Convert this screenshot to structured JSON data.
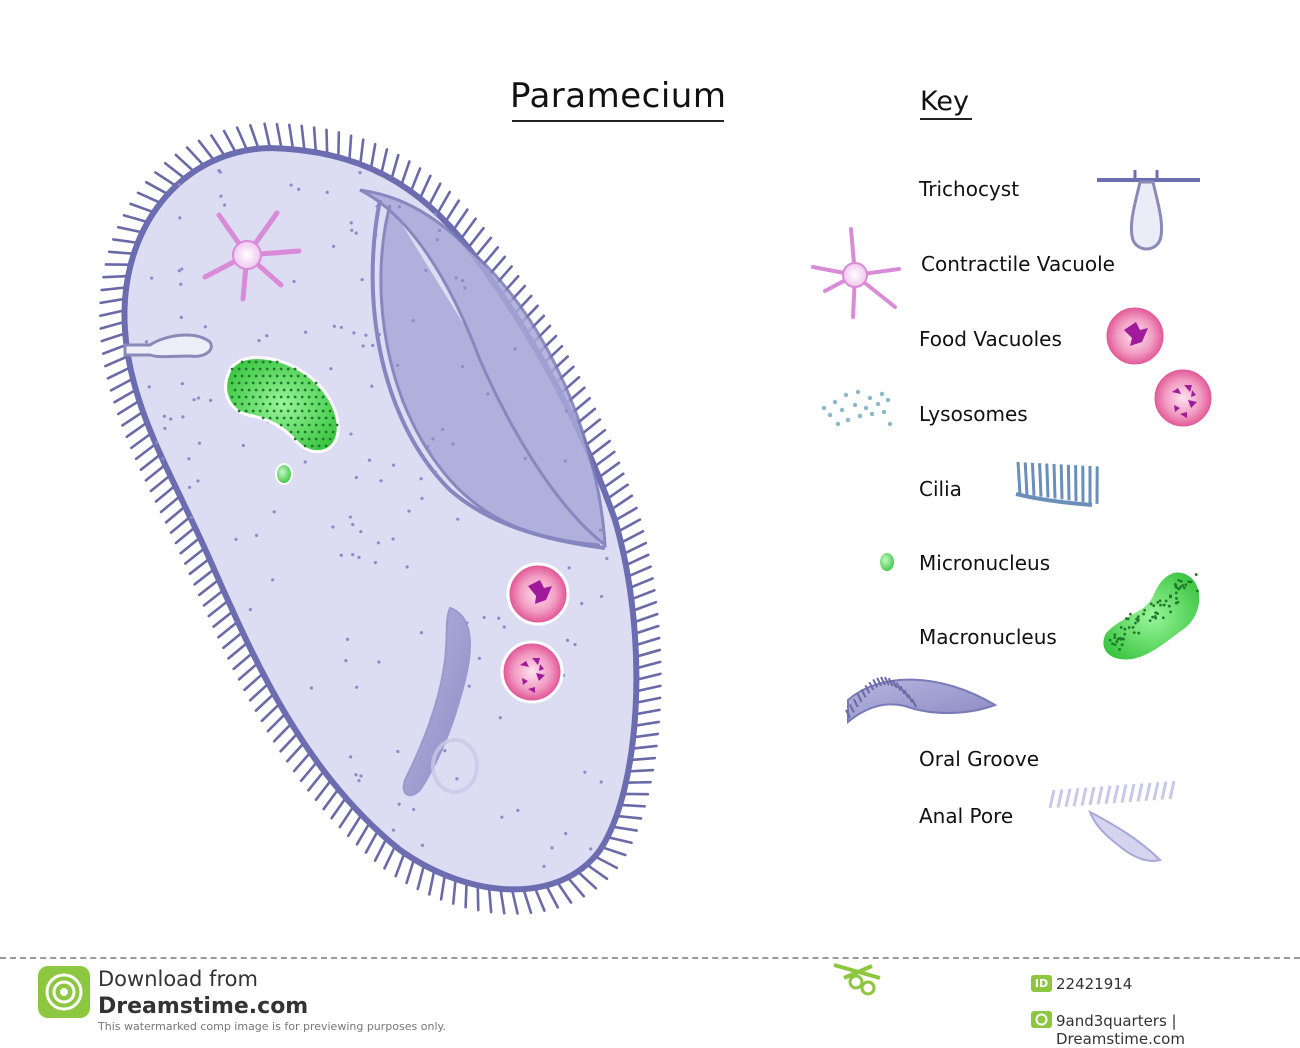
{
  "title": "Paramecium",
  "key_title": "Key",
  "key_labels": {
    "trichocyst": "Trichocyst",
    "contractile_vacuole": "Contractile Vacuole",
    "food_vacuoles": "Food Vacuoles",
    "lysosomes": "Lysosomes",
    "cilia": "Cilia",
    "micronucleus": "Micronucleus",
    "macronucleus": "Macronucleus",
    "oral_groove": "Oral Groove",
    "anal_pore": "Anal Pore"
  },
  "colors": {
    "cell_fill": "#dcdcf3",
    "cell_edge": "#6c6cb0",
    "cilia": "#6a6aa8",
    "contractile": "#d98bd8",
    "food_vacuole": "#e85a9a",
    "food_particle": "#a01a9a",
    "lysosome": "#8ab8cc",
    "cilia_key": "#6b8fb8",
    "nucleus": "#43d04a",
    "nucleus_dots": "#1f7a2c"
  },
  "footer": {
    "download": "Download from",
    "brand": "Dreamstime.com",
    "note": "This watermarked comp image is for previewing purposes only.",
    "id_badge": "ID",
    "image_id": "22421914",
    "credit": "9and3quarters | Dreamstime.com"
  }
}
